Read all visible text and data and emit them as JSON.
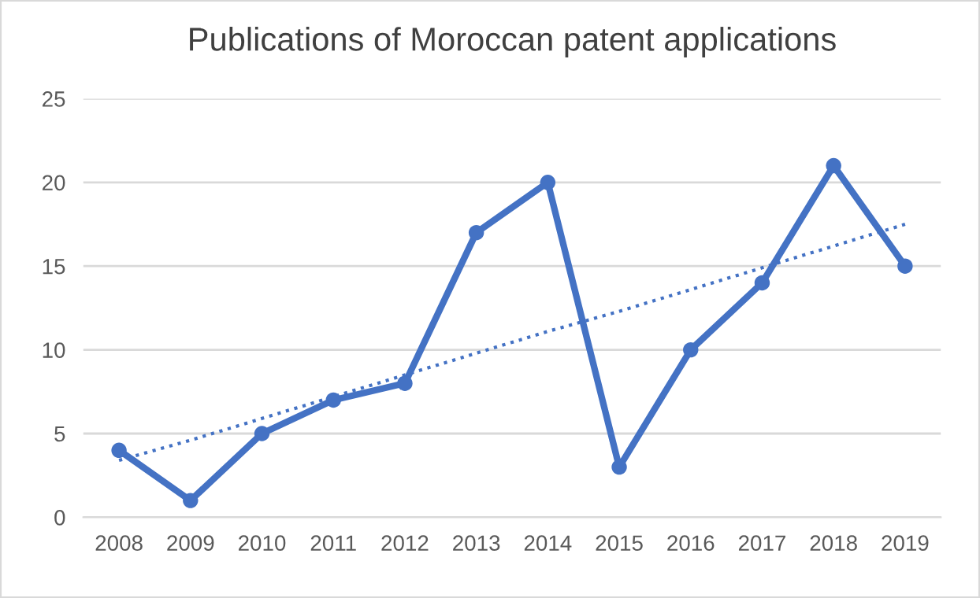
{
  "chart_data": {
    "type": "line",
    "title": "Publications of Moroccan patent applications",
    "categories": [
      "2008",
      "2009",
      "2010",
      "2011",
      "2012",
      "2013",
      "2014",
      "2015",
      "2016",
      "2017",
      "2018",
      "2019"
    ],
    "series": [
      {
        "color": "#4472c4",
        "values": [
          4,
          1,
          5,
          7,
          8,
          17,
          20,
          3,
          10,
          14,
          21,
          15
        ],
        "marker": "circle",
        "line_style": "solid"
      },
      {
        "type": "line",
        "color": "#4472c4",
        "values": [
          3.4,
          4.6,
          5.9,
          7.2,
          8.5,
          9.8,
          11.1,
          12.3,
          13.6,
          14.9,
          16.2,
          17.5
        ],
        "marker": "none",
        "line_style": "dotted"
      }
    ],
    "ylim": [
      0,
      25
    ],
    "yticks": [
      0,
      5,
      10,
      15,
      20,
      25
    ],
    "grid": "y",
    "legend": false
  }
}
